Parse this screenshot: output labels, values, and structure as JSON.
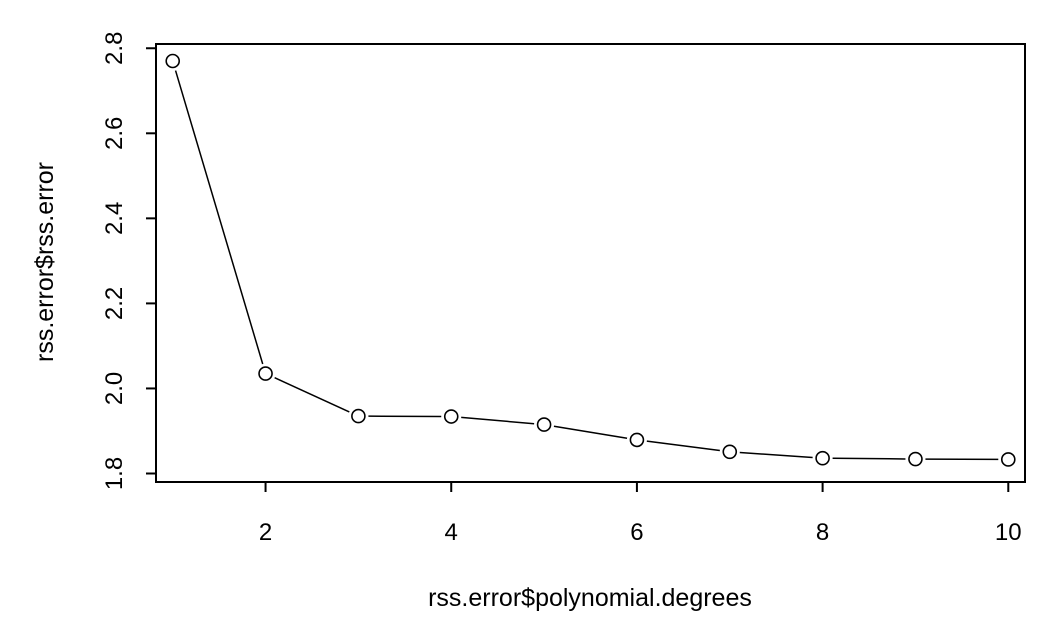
{
  "chart_data": {
    "type": "line",
    "title": "",
    "xlabel": "rss.error$polynomial.degrees",
    "ylabel": "rss.error$rss.error",
    "xlim": [
      0.82,
      10.18
    ],
    "ylim": [
      1.78,
      2.81
    ],
    "xticks": [
      2,
      4,
      6,
      8,
      10
    ],
    "xtick_labels": [
      "2",
      "4",
      "6",
      "8",
      "10"
    ],
    "yticks": [
      1.8,
      2.0,
      2.2,
      2.4,
      2.6,
      2.8
    ],
    "ytick_labels": [
      "1.8",
      "2.0",
      "2.2",
      "2.4",
      "2.6",
      "2.8"
    ],
    "grid": false,
    "markers": "open-circle",
    "line_color": "#000000",
    "series": [
      {
        "x": [
          1,
          2,
          3,
          4,
          5,
          6,
          7,
          8,
          9,
          10
        ],
        "values": [
          2.77,
          2.035,
          1.935,
          1.934,
          1.915,
          1.879,
          1.851,
          1.836,
          1.834,
          1.833
        ]
      }
    ]
  }
}
